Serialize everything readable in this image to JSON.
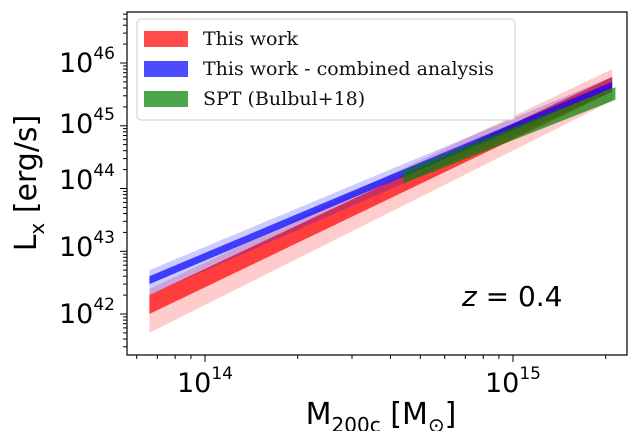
{
  "chart_data": {
    "type": "area",
    "xscale": "log",
    "yscale": "log",
    "xlim": [
      57000000000000.0,
      2400000000000000.0
    ],
    "ylim": [
      6e+41,
      2e+46
    ],
    "xlabel": {
      "main": "M",
      "sub": "200c",
      "unit_open": " [M",
      "unit_sub": "⊙",
      "unit_close": "]"
    },
    "ylabel": {
      "main": "L",
      "sub": "x",
      "unit": " [erg/s]"
    },
    "x_ticks": [
      {
        "value": 100000000000000.0,
        "base": "10",
        "exp": "14"
      },
      {
        "value": 1000000000000000.0,
        "base": "10",
        "exp": "15"
      }
    ],
    "y_ticks": [
      {
        "value": 1e+42,
        "base": "10",
        "exp": "42"
      },
      {
        "value": 1e+43,
        "base": "10",
        "exp": "43"
      },
      {
        "value": 1e+44,
        "base": "10",
        "exp": "44"
      },
      {
        "value": 1e+45,
        "base": "10",
        "exp": "45"
      },
      {
        "value": 1e+46,
        "base": "10",
        "exp": "46"
      }
    ],
    "annotation": {
      "italic": "z",
      "rest": " = 0.4"
    },
    "legend_position": "top-left",
    "series": [
      {
        "name": "This work",
        "color": "#ff0000",
        "x": [
          66000000000000.0,
          2100000000000000.0
        ],
        "outer_lower": [
          5e+41,
          2.5e+45
        ],
        "outer_upper": [
          2.5e+42,
          8e+45
        ],
        "inner_lower": [
          1e+42,
          3.5e+45
        ],
        "inner_upper": [
          2e+42,
          6e+45
        ]
      },
      {
        "name": "This work - combined analysis",
        "color": "#0000ff",
        "x": [
          66000000000000.0,
          2100000000000000.0
        ],
        "outer_lower": [
          2e+42,
          3.5e+45
        ],
        "outer_upper": [
          5e+42,
          6e+45
        ],
        "inner_lower": [
          3e+42,
          4e+45
        ],
        "inner_upper": [
          4e+42,
          5e+45
        ]
      },
      {
        "name": "SPT (Bulbul+18)",
        "color": "#008000",
        "x": [
          440000000000000.0,
          2150000000000000.0
        ],
        "outer_lower": [
          1.2e+44,
          2.6e+45
        ],
        "outer_upper": [
          1.9e+44,
          4.1e+45
        ],
        "inner_lower": [
          1.2e+44,
          2.6e+45
        ],
        "inner_upper": [
          1.9e+44,
          4.1e+45
        ]
      }
    ]
  }
}
